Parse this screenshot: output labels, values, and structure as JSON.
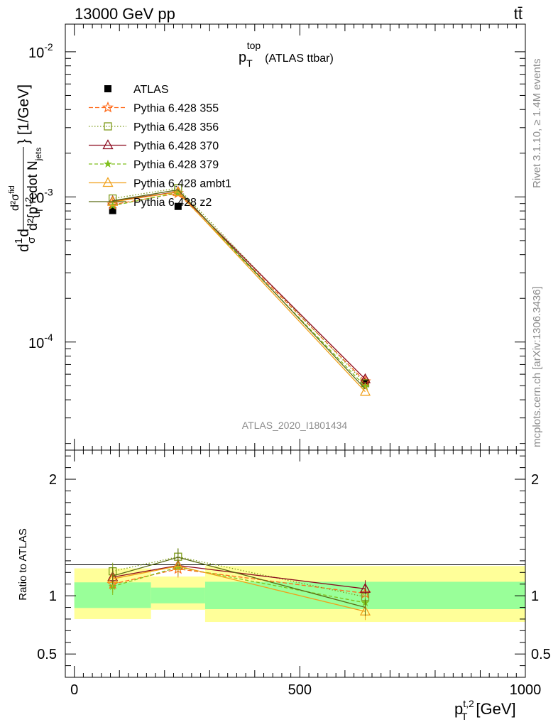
{
  "header": {
    "left": "13000 GeV pp",
    "right": "tt̄"
  },
  "side": {
    "rivet": "Rivet 3.1.10, ≥ 1.4M events",
    "mcplots": "mcplots.cern.ch [arXiv:1306.3436]"
  },
  "chart_data": [
    {
      "type": "line",
      "title": "p_T^top (ATLAS ttbar)",
      "title_main": "p",
      "title_sub": "T",
      "title_sup": "top",
      "title_rest": "(ATLAS ttbar)",
      "ylabel": "d1/σ dσ/d²{p_T^{t,2} cdot N_jets} [1/GeV]",
      "ylabel_parts": {
        "d": "d",
        "frac_num": "1",
        "frac_den": "σ",
        "d2": "d",
        "num_tex": "d²σ",
        "num_sup": "fid",
        "den_tex": "d²{p",
        "den_sup": "t,2",
        "den_sub": "T",
        "den_rest": " cdot N",
        "den_rest_sub": "jets",
        "unit": "} [1/GeV]"
      },
      "yscale": "log",
      "ylim": [
        1.8e-05,
        0.0155
      ],
      "xlim": [
        -20,
        1000
      ],
      "yticks_major": [
        {
          "value": 0.01,
          "label_base": "10",
          "label_exp": "-2"
        },
        {
          "value": 0.001,
          "label_base": "10",
          "label_exp": "-3"
        },
        {
          "value": 0.0001,
          "label_base": "10",
          "label_exp": "-4"
        }
      ],
      "watermark": "ATLAS_2020_I1801434",
      "legend_position": "top-left",
      "series": [
        {
          "name": "ATLAS",
          "color": "#000000",
          "marker": "square-filled",
          "dash": "none",
          "x": [
            85,
            230,
            645
          ],
          "y": [
            0.000805,
            0.00086,
            5.25e-05
          ],
          "yerr": [
            2e-05,
            2e-05,
            1.5e-06
          ]
        },
        {
          "name": "Pythia 6.428 355",
          "color": "#ff6a1a",
          "marker": "star",
          "dash": "6,3",
          "x": [
            85,
            230,
            645
          ],
          "y": [
            0.000885,
            0.00106,
            5.35e-05
          ]
        },
        {
          "name": "Pythia 6.428 356",
          "color": "#7f9c1c",
          "marker": "square-open",
          "dash": "1.5,2.5",
          "x": [
            85,
            230,
            645
          ],
          "y": [
            0.000975,
            0.00115,
            5.2e-05
          ]
        },
        {
          "name": "Pythia 6.428 370",
          "color": "#8c0a1e",
          "marker": "triangle-open",
          "dash": "none",
          "x": [
            85,
            230,
            645
          ],
          "y": [
            0.000935,
            0.001085,
            5.55e-05
          ]
        },
        {
          "name": "Pythia 6.428 379",
          "color": "#7fbf1c",
          "marker": "star-small",
          "dash": "5,3",
          "x": [
            85,
            230,
            645
          ],
          "y": [
            0.00087,
            0.00107,
            4.95e-05
          ]
        },
        {
          "name": "Pythia 6.428 ambt1",
          "color": "#f0a01a",
          "marker": "triangle-open",
          "dash": "none",
          "x": [
            85,
            230,
            645
          ],
          "y": [
            0.000925,
            0.00108,
            4.55e-05
          ]
        },
        {
          "name": "Pythia 6.428 z2",
          "color": "#5a6b14",
          "marker": "none",
          "dash": "none",
          "x": [
            85,
            230,
            645
          ],
          "y": [
            0.00094,
            0.00112,
            4.75e-05
          ]
        }
      ]
    },
    {
      "type": "line",
      "ylabel": "Ratio to ATLAS",
      "xlabel": "p_T^{t,2} [GeV]",
      "xlabel_parts": {
        "main": "p",
        "sup": "t,2",
        "sub": "T",
        "rest": "[GeV]"
      },
      "ylim": [
        0.3,
        2.25
      ],
      "xlim": [
        -20,
        1000
      ],
      "yticks": [
        {
          "value": 2,
          "label": "2"
        },
        {
          "value": 1,
          "label": "1"
        },
        {
          "value": 0.5,
          "label": "0.5"
        }
      ],
      "xticks": [
        {
          "value": 0,
          "label": "0"
        },
        {
          "value": 500,
          "label": "500"
        },
        {
          "value": 1000,
          "label": "1000"
        }
      ],
      "bands": {
        "bins": [
          0,
          170,
          290,
          1000
        ],
        "inner": [
          [
            0.895,
            1.115
          ],
          [
            0.935,
            1.07
          ],
          [
            0.885,
            1.12
          ]
        ],
        "outer": [
          [
            0.8,
            1.235
          ],
          [
            0.88,
            1.165
          ],
          [
            0.775,
            1.255
          ]
        ],
        "inner_color": "#99ff99",
        "outer_color": "#ffff99"
      },
      "series": [
        {
          "name": "Pythia 6.428 355",
          "color": "#ff6a1a",
          "marker": "star",
          "dash": "6,3",
          "x": [
            85,
            230,
            645
          ],
          "y": [
            1.1,
            1.23,
            1.02
          ]
        },
        {
          "name": "Pythia 6.428 356",
          "color": "#7f9c1c",
          "marker": "square-open",
          "dash": "1.5,2.5",
          "x": [
            85,
            230,
            645
          ],
          "y": [
            1.21,
            1.335,
            0.99
          ]
        },
        {
          "name": "Pythia 6.428 370",
          "color": "#8c0a1e",
          "marker": "triangle-open",
          "dash": "none",
          "x": [
            85,
            230,
            645
          ],
          "y": [
            1.16,
            1.26,
            1.06
          ]
        },
        {
          "name": "Pythia 6.428 379",
          "color": "#7fbf1c",
          "marker": "star-small",
          "dash": "5,3",
          "x": [
            85,
            230,
            645
          ],
          "y": [
            1.08,
            1.245,
            0.94
          ]
        },
        {
          "name": "Pythia 6.428 ambt1",
          "color": "#f0a01a",
          "marker": "triangle-open",
          "dash": "none",
          "x": [
            85,
            230,
            645
          ],
          "y": [
            1.145,
            1.255,
            0.865
          ]
        },
        {
          "name": "Pythia 6.428 z2",
          "color": "#5a6b14",
          "marker": "none",
          "dash": "none",
          "x": [
            85,
            230,
            645
          ],
          "y": [
            1.17,
            1.33,
            0.9
          ]
        }
      ]
    }
  ]
}
